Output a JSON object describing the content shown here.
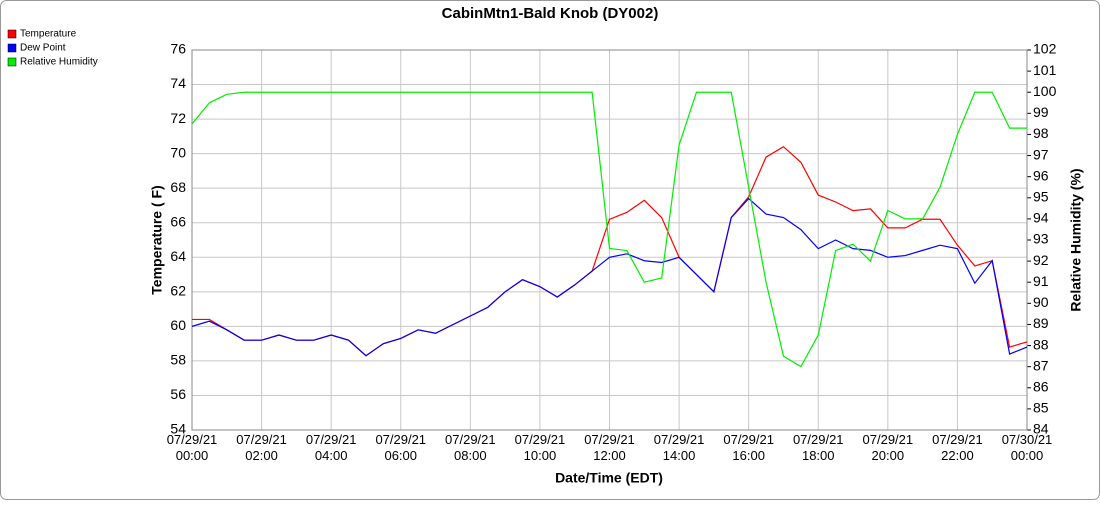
{
  "chart_data": {
    "type": "line",
    "title": "CabinMtn1-Bald Knob (DY002)",
    "xlabel": "Date/Time (EDT)",
    "ylabel": "Temperature ( F)",
    "y2label": "Relative Humidity (%)",
    "grid": true,
    "legend": "top-left",
    "x": [
      "07/29/21 00:00",
      "07/29/21 00:30",
      "07/29/21 01:00",
      "07/29/21 01:30",
      "07/29/21 02:00",
      "07/29/21 02:30",
      "07/29/21 03:00",
      "07/29/21 03:30",
      "07/29/21 04:00",
      "07/29/21 04:30",
      "07/29/21 05:00",
      "07/29/21 05:30",
      "07/29/21 06:00",
      "07/29/21 06:30",
      "07/29/21 07:00",
      "07/29/21 07:30",
      "07/29/21 08:00",
      "07/29/21 08:30",
      "07/29/21 09:00",
      "07/29/21 09:30",
      "07/29/21 10:00",
      "07/29/21 10:30",
      "07/29/21 11:00",
      "07/29/21 11:30",
      "07/29/21 12:00",
      "07/29/21 12:30",
      "07/29/21 13:00",
      "07/29/21 13:30",
      "07/29/21 14:00",
      "07/29/21 14:30",
      "07/29/21 15:00",
      "07/29/21 15:30",
      "07/29/21 16:00",
      "07/29/21 16:30",
      "07/29/21 17:00",
      "07/29/21 17:30",
      "07/29/21 18:00",
      "07/29/21 18:30",
      "07/29/21 19:00",
      "07/29/21 19:30",
      "07/29/21 20:00",
      "07/29/21 20:30",
      "07/29/21 21:00",
      "07/29/21 21:30",
      "07/29/21 22:00",
      "07/29/21 22:30",
      "07/29/21 23:00",
      "07/29/21 23:30",
      "07/30/21 00:00"
    ],
    "series": [
      {
        "name": "Temperature",
        "color": "#ff0000",
        "values": [
          60.4,
          60.4,
          59.8,
          59.2,
          59.2,
          59.5,
          59.2,
          59.2,
          59.5,
          59.2,
          58.3,
          59.0,
          59.3,
          59.8,
          59.6,
          60.1,
          60.6,
          61.1,
          62.0,
          62.7,
          62.3,
          61.7,
          62.4,
          63.2,
          66.2,
          66.6,
          67.3,
          66.3,
          64.0,
          63.0,
          62.0,
          66.3,
          67.5,
          69.8,
          70.4,
          69.5,
          67.6,
          67.2,
          66.7,
          66.8,
          65.7,
          65.7,
          66.2,
          66.2,
          64.7,
          63.5,
          63.8,
          58.8,
          59.1
        ]
      },
      {
        "name": "Dew Point",
        "color": "#0000ff",
        "values": [
          60.0,
          60.3,
          59.8,
          59.2,
          59.2,
          59.5,
          59.2,
          59.2,
          59.5,
          59.2,
          58.3,
          59.0,
          59.3,
          59.8,
          59.6,
          60.1,
          60.6,
          61.1,
          62.0,
          62.7,
          62.3,
          61.7,
          62.4,
          63.2,
          64.0,
          64.2,
          63.8,
          63.7,
          64.0,
          63.0,
          62.0,
          66.3,
          67.4,
          66.5,
          66.3,
          65.6,
          64.5,
          65.0,
          64.5,
          64.4,
          64.0,
          64.1,
          64.4,
          64.7,
          64.5,
          62.5,
          63.8,
          58.4,
          58.8
        ]
      },
      {
        "name": "Relative Humidity",
        "color": "#00ee00",
        "axis": "y2",
        "values": [
          98.5,
          99.5,
          99.9,
          100,
          100,
          100,
          100,
          100,
          100,
          100,
          100,
          100,
          100,
          100,
          100,
          100,
          100,
          100,
          100,
          100,
          100,
          100,
          100,
          100,
          92.6,
          92.5,
          91.0,
          91.2,
          97.5,
          100,
          100,
          100,
          95.5,
          91.0,
          87.5,
          87.0,
          88.5,
          92.5,
          92.8,
          92.0,
          94.4,
          94.0,
          94.0,
          95.5,
          98.0,
          100,
          100,
          98.3,
          98.3
        ]
      }
    ],
    "xlim": [
      "07/29/21 00:00",
      "07/30/21 00:00"
    ],
    "xticks": [
      "07/29/21 00:00",
      "07/29/21 02:00",
      "07/29/21 04:00",
      "07/29/21 06:00",
      "07/29/21 08:00",
      "07/29/21 10:00",
      "07/29/21 12:00",
      "07/29/21 14:00",
      "07/29/21 16:00",
      "07/29/21 18:00",
      "07/29/21 20:00",
      "07/29/21 22:00",
      "07/30/21 00:00"
    ],
    "ylim": [
      54,
      76
    ],
    "yticks": [
      54,
      56,
      58,
      60,
      62,
      64,
      66,
      68,
      70,
      72,
      74,
      76
    ],
    "y2lim": [
      84,
      102
    ],
    "y2ticks": [
      84,
      85,
      86,
      87,
      88,
      89,
      90,
      91,
      92,
      93,
      94,
      95,
      96,
      97,
      98,
      99,
      100,
      101,
      102
    ]
  }
}
